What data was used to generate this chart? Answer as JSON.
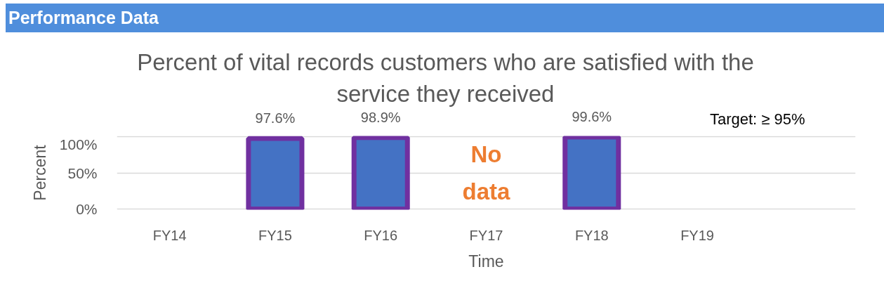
{
  "chart_data": {
    "type": "bar",
    "title": "Performance Data",
    "subtitle": "Percent of vital records customers who are satisfied with the service they received",
    "xlabel": "Time",
    "ylabel": "Percent",
    "categories": [
      "FY14",
      "FY15",
      "FY16",
      "FY17",
      "FY18",
      "FY19",
      null
    ],
    "values": [
      null,
      97.6,
      98.9,
      null,
      99.6,
      null,
      null
    ],
    "color": "#4472c4",
    "value_labels": [
      null,
      "97.6%",
      "98.9%",
      null,
      "99.6%",
      null,
      null
    ],
    "ylim": [
      0,
      100
    ],
    "yticks": [
      {
        "value": 0,
        "label": "0%"
      },
      {
        "value": 50,
        "label": "50%"
      },
      {
        "value": 100,
        "label": "100%"
      }
    ],
    "grid": "y",
    "annotations": [
      "No data",
      "Target: ≥ 95%"
    ]
  }
}
